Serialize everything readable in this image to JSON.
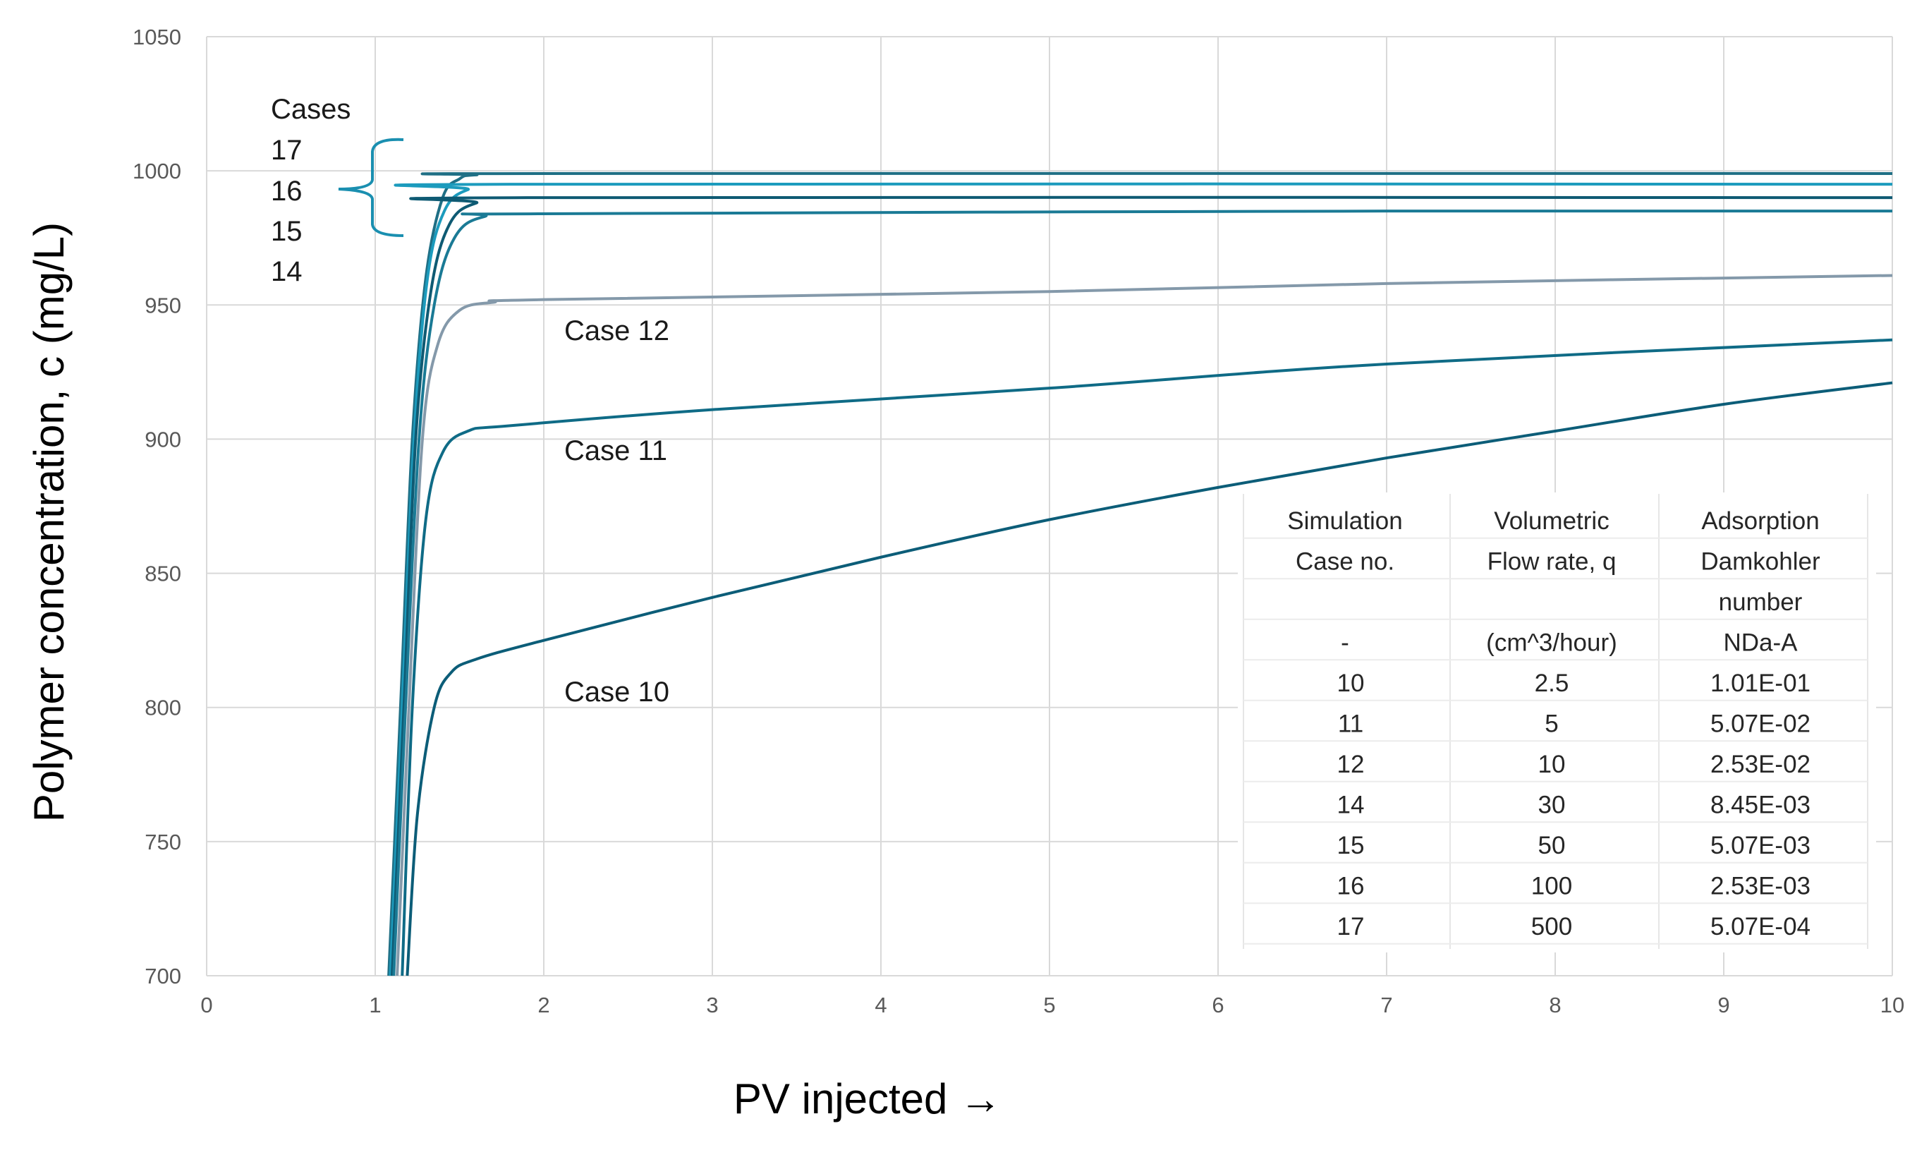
{
  "chart_data": {
    "type": "line",
    "title": "",
    "xlabel": "PV injected →",
    "ylabel": "Polymer concentration, c (mg/L)",
    "xlim": [
      0,
      10
    ],
    "ylim": [
      700,
      1050
    ],
    "x_ticks": [
      "0",
      "1",
      "2",
      "3",
      "4",
      "5",
      "6",
      "7",
      "8",
      "9",
      "10"
    ],
    "y_ticks": [
      "700",
      "750",
      "800",
      "850",
      "900",
      "950",
      "1000",
      "1050"
    ],
    "grid": true,
    "legend": "none",
    "series": [
      {
        "case": "17",
        "color": "#1f6f85",
        "points": [
          [
            1.08,
            700
          ],
          [
            1.15,
            800
          ],
          [
            1.22,
            900
          ],
          [
            1.3,
            960
          ],
          [
            1.4,
            990
          ],
          [
            1.5,
            997
          ],
          [
            1.6,
            998.5
          ],
          [
            2,
            999
          ],
          [
            10,
            999
          ]
        ]
      },
      {
        "case": "16",
        "color": "#1c9bbd",
        "points": [
          [
            1.09,
            700
          ],
          [
            1.16,
            800
          ],
          [
            1.23,
            900
          ],
          [
            1.31,
            960
          ],
          [
            1.41,
            985
          ],
          [
            1.55,
            993
          ],
          [
            1.8,
            995
          ],
          [
            10,
            995
          ]
        ]
      },
      {
        "case": "15",
        "color": "#0e5a73",
        "points": [
          [
            1.1,
            700
          ],
          [
            1.17,
            800
          ],
          [
            1.24,
            900
          ],
          [
            1.33,
            955
          ],
          [
            1.44,
            980
          ],
          [
            1.6,
            988
          ],
          [
            1.9,
            990
          ],
          [
            10,
            990
          ]
        ]
      },
      {
        "case": "14",
        "color": "#1a7a95",
        "points": [
          [
            1.11,
            700
          ],
          [
            1.18,
            800
          ],
          [
            1.26,
            900
          ],
          [
            1.35,
            950
          ],
          [
            1.47,
            975
          ],
          [
            1.65,
            983
          ],
          [
            2,
            984
          ],
          [
            7,
            985
          ],
          [
            10,
            985
          ]
        ]
      },
      {
        "case": "12",
        "color": "#8499aa",
        "points": [
          [
            1.13,
            700
          ],
          [
            1.2,
            800
          ],
          [
            1.28,
            900
          ],
          [
            1.37,
            935
          ],
          [
            1.5,
            948
          ],
          [
            1.7,
            951
          ],
          [
            2,
            952
          ],
          [
            5,
            955
          ],
          [
            7,
            958
          ],
          [
            10,
            961
          ]
        ]
      },
      {
        "case": "11",
        "color": "#0f6b86",
        "points": [
          [
            1.16,
            700
          ],
          [
            1.22,
            800
          ],
          [
            1.3,
            870
          ],
          [
            1.4,
            895
          ],
          [
            1.55,
            903
          ],
          [
            1.8,
            905
          ],
          [
            3,
            911
          ],
          [
            5,
            919
          ],
          [
            7,
            928
          ],
          [
            10,
            937
          ]
        ]
      },
      {
        "case": "10",
        "color": "#0c5d78",
        "points": [
          [
            1.19,
            700
          ],
          [
            1.25,
            760
          ],
          [
            1.35,
            800
          ],
          [
            1.45,
            813
          ],
          [
            1.6,
            818
          ],
          [
            2,
            825
          ],
          [
            3,
            841
          ],
          [
            4,
            856
          ],
          [
            5,
            870
          ],
          [
            6,
            882
          ],
          [
            7,
            893
          ],
          [
            8,
            903
          ],
          [
            9,
            913
          ],
          [
            10,
            921
          ]
        ]
      }
    ],
    "annotations": {
      "cases_group": [
        "Cases",
        "17",
        "16",
        "15",
        "14"
      ],
      "case12": "Case 12",
      "case11": "Case 11",
      "case10": "Case  10"
    },
    "table": {
      "header_rows": [
        [
          "Simulation",
          "Volumetric",
          "Adsorption"
        ],
        [
          "Case no.",
          "Flow rate, q",
          "Damkohler"
        ],
        [
          "",
          "",
          "number"
        ],
        [
          "-",
          "(cm^3/hour)",
          "NDa-A"
        ]
      ],
      "rows": [
        [
          "10",
          "2.5",
          "1.01E-01"
        ],
        [
          "11",
          "5",
          "5.07E-02"
        ],
        [
          "12",
          "10",
          "2.53E-02"
        ],
        [
          "14",
          "30",
          "8.45E-03"
        ],
        [
          "15",
          "50",
          "5.07E-03"
        ],
        [
          "16",
          "100",
          "2.53E-03"
        ],
        [
          "17",
          "500",
          "5.07E-04"
        ]
      ]
    }
  }
}
